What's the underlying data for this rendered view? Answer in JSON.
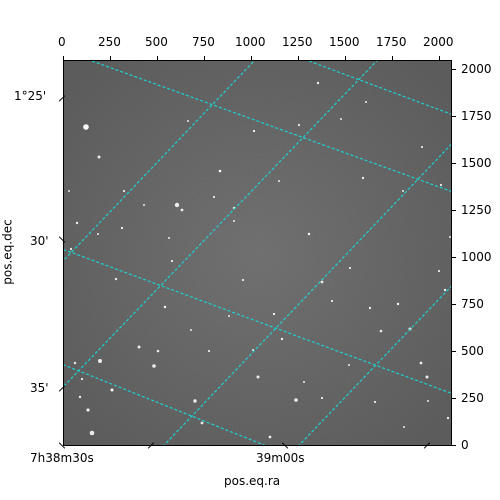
{
  "image": {
    "description_labels": {
      "x_axis_title": "pos.eq.ra",
      "y_axis_title": "pos.eq.dec"
    },
    "top_ticks": [
      "0",
      "250",
      "500",
      "750",
      "1000",
      "1250",
      "1500",
      "1750",
      "2000"
    ],
    "right_ticks": [
      "2000",
      "1750",
      "1500",
      "1250",
      "1000",
      "750",
      "500",
      "250",
      "0"
    ],
    "left_ticks": [
      "1°25'",
      "30'",
      "35'"
    ],
    "bottom_ticks": [
      "7h38m30s",
      "39m00s"
    ],
    "colors": {
      "background": "#ffffff",
      "image_gray": "#6a6a6a",
      "grid": "#20d0d0",
      "star": "#ffffff",
      "axis": "#000000"
    }
  }
}
